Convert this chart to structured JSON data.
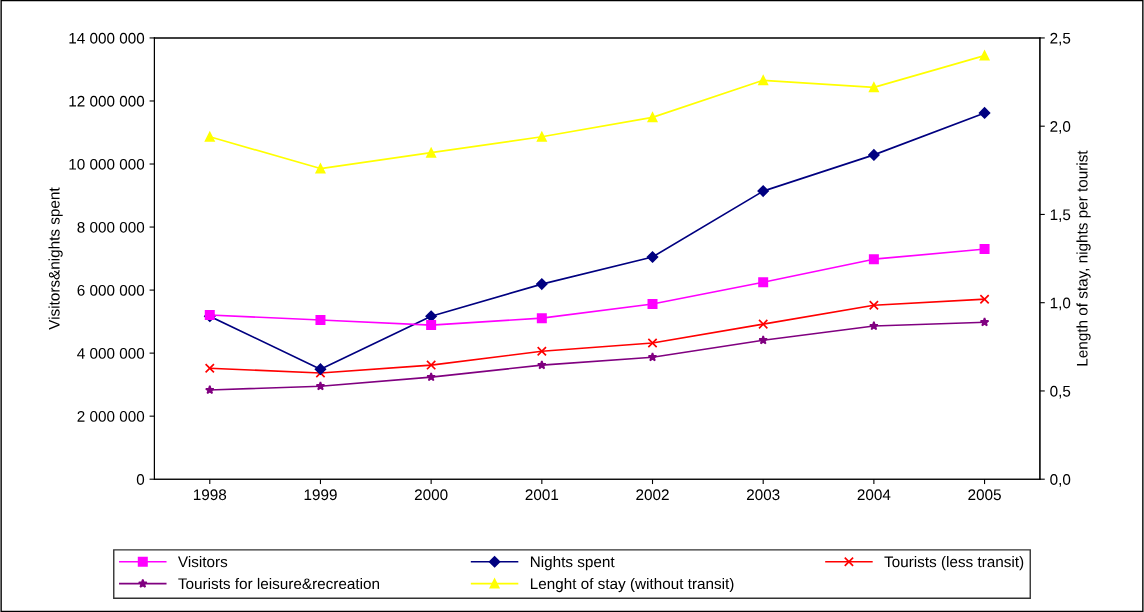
{
  "chart_data": {
    "type": "line",
    "categories": [
      "1998",
      "1999",
      "2000",
      "2001",
      "2002",
      "2003",
      "2004",
      "2005"
    ],
    "ylabel": "Visitors&nights spent",
    "y2label": "Length of stay, nights per tourist",
    "ylim": [
      0,
      14000000
    ],
    "yticks": [
      0,
      {
        "value": 2000000,
        "label": "2 000 000"
      },
      {
        "value": 4000000,
        "label": "4 000 000"
      },
      {
        "value": 6000000,
        "label": "6 000 000"
      },
      {
        "value": 8000000,
        "label": "8 000 000"
      },
      {
        "value": 10000000,
        "label": "10 000 000"
      },
      {
        "value": 12000000,
        "label": "12 000 000"
      },
      {
        "value": 14000000,
        "label": "14 000 000"
      }
    ],
    "y2lim": [
      0,
      2.5
    ],
    "y2ticks": [
      {
        "value": 0,
        "label": "0,0"
      },
      {
        "value": 0.5,
        "label": "0,5"
      },
      {
        "value": 1.0,
        "label": "1,0"
      },
      {
        "value": 1.5,
        "label": "1,5"
      },
      {
        "value": 2.0,
        "label": "2,0"
      },
      {
        "value": 2.5,
        "label": "2,5"
      }
    ],
    "grid": false,
    "legend": "bottom",
    "series": [
      {
        "name": "Visitors",
        "color": "#ff00ff",
        "marker": "square",
        "values": [
          5210000,
          5050000,
          4890000,
          5110000,
          5560000,
          6250000,
          6980000,
          7300000
        ]
      },
      {
        "name": "Nights spent",
        "color": "#000080",
        "marker": "diamond",
        "values": [
          5170000,
          3490000,
          5170000,
          6190000,
          7050000,
          9140000,
          10290000,
          11620000
        ]
      },
      {
        "name": "Tourists (less transit)",
        "color": "#ff0000",
        "marker": "cross",
        "values": [
          3520000,
          3370000,
          3620000,
          4060000,
          4320000,
          4920000,
          5520000,
          5710000
        ]
      },
      {
        "name": "Tourists for leisure&recreation",
        "color": "#800080",
        "marker": "star",
        "values": [
          2830000,
          2950000,
          3240000,
          3620000,
          3870000,
          4410000,
          4860000,
          4980000
        ]
      },
      {
        "name": "Lenght of stay (without transit)",
        "color": "#ffff00",
        "marker": "triangle",
        "axis": "y2",
        "values": [
          1.94,
          1.76,
          1.85,
          1.94,
          2.05,
          2.26,
          2.22,
          2.4
        ]
      }
    ]
  }
}
